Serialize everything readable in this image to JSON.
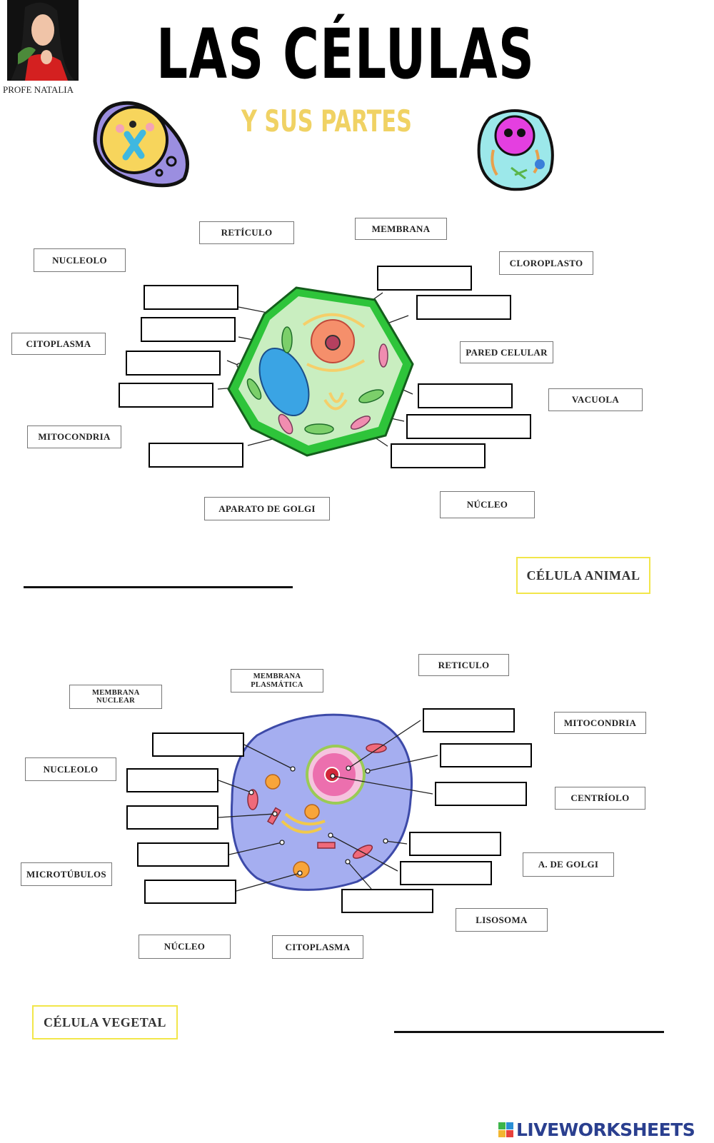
{
  "header": {
    "title": "LAS CÉLULAS",
    "subtitle": "Y SUS PARTES",
    "author": "PROFE NATALIA"
  },
  "section1": {
    "labels": [
      "RETÍCULO",
      "MEMBRANA",
      "NUCLEOLO",
      "CLOROPLASTO",
      "CITOPLASMA",
      "PARED CELULAR",
      "VACUOLA",
      "MITOCONDRIA",
      "APARATO DE GOLGI",
      "NÚCLEO"
    ],
    "cell_type": "CÉLULA ANIMAL"
  },
  "section2": {
    "labels": [
      "RETICULO",
      "MEMBRANA PLASMÁTICA",
      "MEMBRANA NUCLEAR",
      "MITOCONDRIA",
      "NUCLEOLO",
      "CENTRÍOLO",
      "A. DE GOLGI",
      "MICROTÚBULOS",
      "LISOSOMA",
      "NÚCLEO",
      "CITOPLASMA"
    ],
    "cell_type": "CÉLULA VEGETAL"
  },
  "footer": {
    "brand": "LIVEWORKSHEETS"
  },
  "colors": {
    "highlight_border": "#f2e64a",
    "subtitle": "#f0d264",
    "brand": "#2a3f8f"
  }
}
